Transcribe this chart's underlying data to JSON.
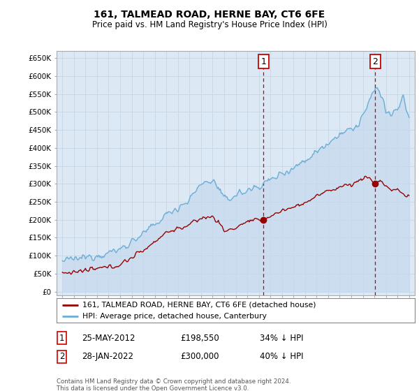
{
  "title": "161, TALMEAD ROAD, HERNE BAY, CT6 6FE",
  "subtitle": "Price paid vs. HM Land Registry's House Price Index (HPI)",
  "background_color": "#ffffff",
  "plot_bg": "#dce9f5",
  "grid_color": "#c8d8e8",
  "hpi_color": "#6baed6",
  "hpi_fill": "#c6d9ee",
  "price_color": "#990000",
  "dashed_line_color": "#cc0000",
  "legend_label_price": "161, TALMEAD ROAD, HERNE BAY, CT6 6FE (detached house)",
  "legend_label_hpi": "HPI: Average price, detached house, Canterbury",
  "annotation1_label": "1",
  "annotation1_date": "25-MAY-2012",
  "annotation1_price": "£198,550",
  "annotation1_pct": "34% ↓ HPI",
  "annotation2_label": "2",
  "annotation2_date": "28-JAN-2022",
  "annotation2_price": "£300,000",
  "annotation2_pct": "40% ↓ HPI",
  "footer": "Contains HM Land Registry data © Crown copyright and database right 2024.\nThis data is licensed under the Open Government Licence v3.0.",
  "year_start": 1995,
  "year_end": 2025,
  "sale1_year": 2012.4,
  "sale1_val": 198550,
  "sale2_year": 2022.08,
  "sale2_val": 300000,
  "yticks": [
    0,
    50000,
    100000,
    150000,
    200000,
    250000,
    300000,
    350000,
    400000,
    450000,
    500000,
    550000,
    600000,
    650000
  ],
  "ymax": 670000,
  "ymin": -10000
}
